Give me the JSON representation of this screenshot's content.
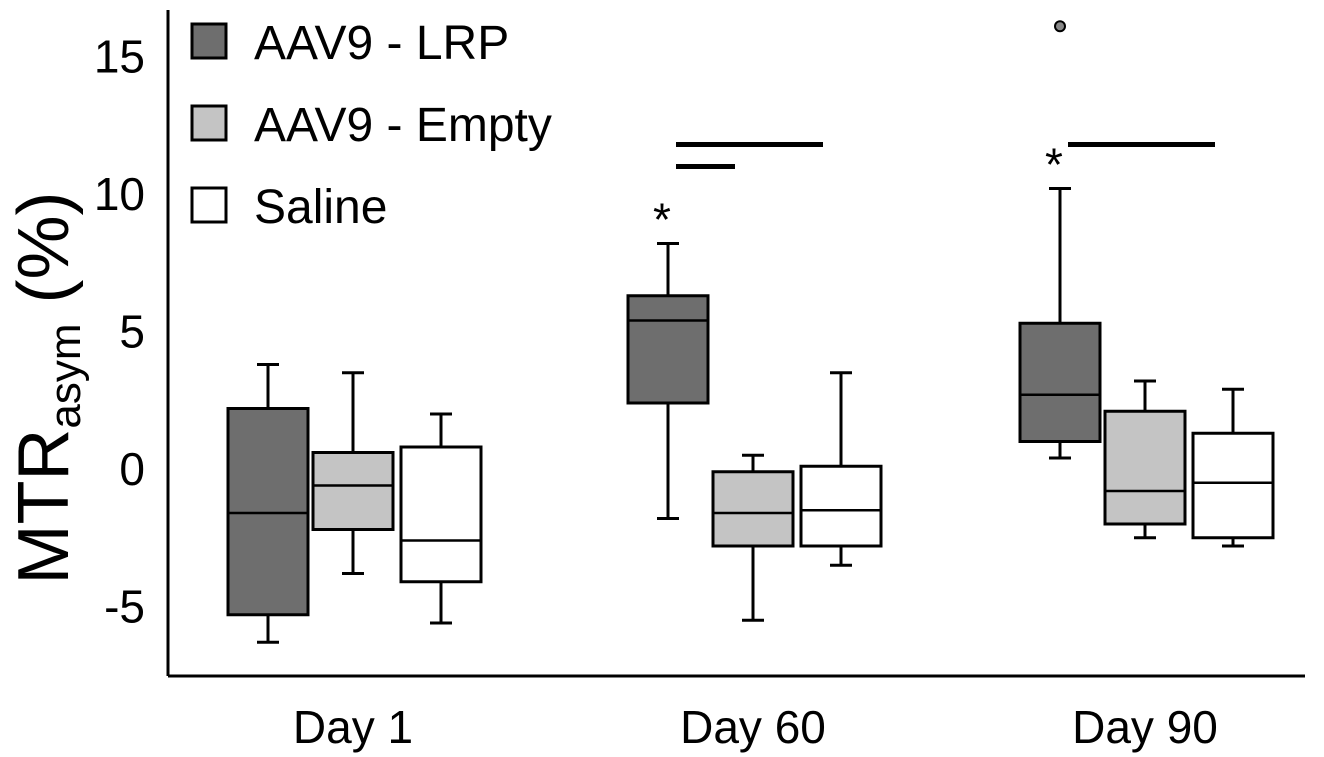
{
  "chart_data": {
    "type": "box",
    "categories": [
      "Day 1",
      "Day 60",
      "Day 90"
    ],
    "ylabel": {
      "main": "MTR",
      "sub": "asym",
      "suffix": " (%)"
    },
    "ylim": [
      -7,
      16.5
    ],
    "yticks": [
      {
        "value": 15,
        "label": "15"
      },
      {
        "value": 10,
        "label": "10"
      },
      {
        "value": 5,
        "label": "5"
      },
      {
        "value": 0,
        "label": "0"
      },
      {
        "value": -5,
        "label": "-5"
      }
    ],
    "colors": {
      "AAV9 - LRP": "#6e6e6e",
      "AAV9 - Empty": "#c4c4c4",
      "Saline": "#ffffff"
    },
    "series": [
      {
        "name": "AAV9 - LRP",
        "boxes": [
          {
            "whisker_low": -6.3,
            "q1": -5.3,
            "median": -1.6,
            "q3": 2.2,
            "whisker_high": 3.8
          },
          {
            "whisker_low": -1.8,
            "q1": 2.4,
            "median": 5.4,
            "q3": 6.3,
            "whisker_high": 8.2
          },
          {
            "whisker_low": 0.4,
            "q1": 1.0,
            "median": 2.7,
            "q3": 5.3,
            "whisker_high": 10.2,
            "outliers": [
              16.1
            ]
          }
        ]
      },
      {
        "name": "AAV9 - Empty",
        "boxes": [
          {
            "whisker_low": -3.8,
            "q1": -2.2,
            "median": -0.6,
            "q3": 0.6,
            "whisker_high": 3.5
          },
          {
            "whisker_low": -5.5,
            "q1": -2.8,
            "median": -1.6,
            "q3": -0.1,
            "whisker_high": 0.5
          },
          {
            "whisker_low": -2.5,
            "q1": -2.0,
            "median": -0.8,
            "q3": 2.1,
            "whisker_high": 3.2
          }
        ]
      },
      {
        "name": "Saline",
        "boxes": [
          {
            "whisker_low": -5.6,
            "q1": -4.1,
            "median": -2.6,
            "q3": 0.8,
            "whisker_high": 2.0
          },
          {
            "whisker_low": -3.5,
            "q1": -2.8,
            "median": -1.5,
            "q3": 0.1,
            "whisker_high": 3.5
          },
          {
            "whisker_low": -2.8,
            "q1": -2.5,
            "median": -0.5,
            "q3": 1.3,
            "whisker_high": 2.9
          }
        ]
      }
    ],
    "legend": {
      "position": "top-left",
      "entries": [
        "AAV9 - LRP",
        "AAV9 - Empty",
        "Saline"
      ]
    },
    "annotations": [
      {
        "text": "*",
        "category": "Day 60",
        "series": "AAV9 - LRP"
      },
      {
        "text": "*",
        "category": "Day 90",
        "series": "AAV9 - LRP"
      }
    ],
    "significance_bars": [
      {
        "category": "Day 60",
        "from": "AAV9 - LRP",
        "to": "Saline",
        "y": 11.8
      },
      {
        "category": "Day 60",
        "from": "AAV9 - LRP",
        "to": "AAV9 - Empty",
        "y": 11.0
      },
      {
        "category": "Day 90",
        "from": "AAV9 - LRP",
        "to": "Saline",
        "y": 11.8
      }
    ],
    "grid": false
  }
}
